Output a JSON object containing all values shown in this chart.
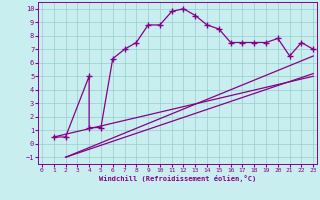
{
  "xlabel": "Windchill (Refroidissement éolien,°C)",
  "bg_color": "#c8eef0",
  "line_color": "#880088",
  "grid_color": "#99cccc",
  "x_ticks": [
    0,
    1,
    2,
    3,
    4,
    5,
    6,
    7,
    8,
    9,
    10,
    11,
    12,
    13,
    14,
    15,
    16,
    17,
    18,
    19,
    20,
    21,
    22,
    23
  ],
  "y_ticks": [
    -1,
    0,
    1,
    2,
    3,
    4,
    5,
    6,
    7,
    8,
    9,
    10
  ],
  "ylim": [
    -1.5,
    10.5
  ],
  "xlim": [
    -0.3,
    23.3
  ],
  "curve1_x": [
    1,
    2,
    4,
    4,
    5,
    6,
    7,
    8,
    9,
    10,
    11,
    12,
    13,
    14,
    15,
    16,
    17,
    18,
    19,
    20,
    21,
    22,
    23
  ],
  "curve1_y": [
    0.5,
    0.5,
    5.0,
    1.2,
    1.2,
    6.3,
    7.0,
    7.5,
    8.8,
    8.8,
    9.8,
    10.0,
    9.5,
    8.8,
    8.5,
    7.5,
    7.5,
    7.5,
    7.5,
    7.8,
    6.5,
    7.5,
    7.0
  ],
  "line1_x": [
    2,
    23
  ],
  "line1_y": [
    -1.0,
    6.5
  ],
  "line2_x": [
    2,
    23
  ],
  "line2_y": [
    -1.0,
    5.2
  ],
  "line3_x": [
    1,
    23
  ],
  "line3_y": [
    0.5,
    5.0
  ]
}
